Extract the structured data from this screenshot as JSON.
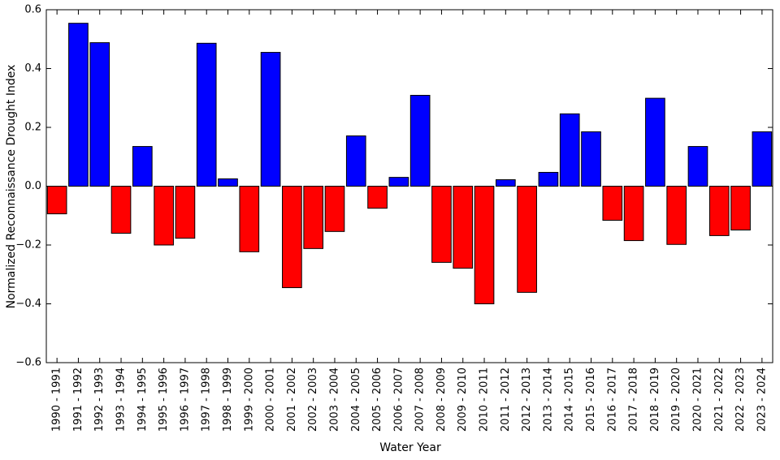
{
  "chart_data": {
    "type": "bar",
    "xlabel": "Water Year",
    "ylabel": "Normalized Reconnaissance Drought Index",
    "categories": [
      "1990 - 1991",
      "1991 - 1992",
      "1992 - 1993",
      "1993 - 1994",
      "1994 - 1995",
      "1995 - 1996",
      "1996 - 1997",
      "1997 - 1998",
      "1998 - 1999",
      "1999 - 2000",
      "2000 - 2001",
      "2001 - 2002",
      "2002 - 2003",
      "2003 - 2004",
      "2004 - 2005",
      "2005 - 2006",
      "2006 - 2007",
      "2007 - 2008",
      "2008 - 2009",
      "2009 - 2010",
      "2010 - 2011",
      "2011 - 2012",
      "2012 - 2013",
      "2013 - 2014",
      "2014 - 2015",
      "2015 - 2016",
      "2016 - 2017",
      "2017 - 2018",
      "2018 - 2019",
      "2019 - 2020",
      "2020 - 2021",
      "2021 - 2022",
      "2022 - 2023",
      "2023 - 2024"
    ],
    "values": [
      -0.094,
      0.554,
      0.488,
      -0.16,
      0.135,
      -0.2,
      -0.177,
      0.486,
      0.025,
      -0.223,
      0.455,
      -0.345,
      -0.212,
      -0.154,
      0.171,
      -0.075,
      0.03,
      0.309,
      -0.259,
      -0.279,
      -0.4,
      0.022,
      -0.361,
      0.047,
      0.246,
      0.185,
      -0.116,
      -0.185,
      0.299,
      -0.198,
      0.135,
      -0.168,
      -0.149,
      0.185
    ],
    "positive_color": "#0000ff",
    "negative_color": "#ff0000",
    "ylim": [
      -0.6,
      0.6
    ],
    "yticks": [
      {
        "value": -0.6,
        "label": "−0.6"
      },
      {
        "value": -0.4,
        "label": "−0.4"
      },
      {
        "value": -0.2,
        "label": "−0.2"
      },
      {
        "value": 0,
        "label": "0.0"
      },
      0.2,
      0.4,
      0.6
    ],
    "grid": false
  }
}
